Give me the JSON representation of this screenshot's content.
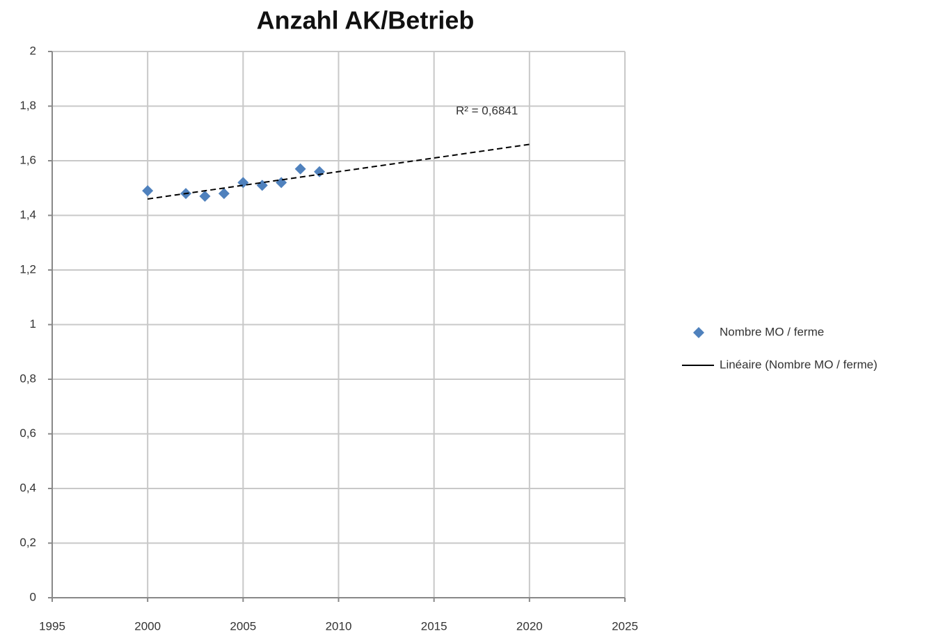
{
  "chart_data": {
    "type": "scatter",
    "title": "Anzahl AK/Betrieb",
    "annotation": "R² = 0,6841",
    "series": [
      {
        "name": "Nombre MO / ferme",
        "color": "#4f81bd",
        "mode": "markers",
        "x": [
          2000,
          2002,
          2003,
          2004,
          2005,
          2006,
          2007,
          2008,
          2009
        ],
        "values": [
          1.49,
          1.48,
          1.47,
          1.48,
          1.52,
          1.51,
          1.52,
          1.57,
          1.56
        ]
      },
      {
        "name": "Linéaire (Nombre MO / ferme)",
        "color": "#000000",
        "mode": "dashed-line",
        "x": [
          2000,
          2020
        ],
        "values": [
          1.46,
          1.66
        ]
      }
    ],
    "xlim": [
      1995,
      2025
    ],
    "xticks": [
      1995,
      2000,
      2005,
      2010,
      2015,
      2020,
      2025
    ],
    "ylim": [
      0,
      2
    ],
    "yticks": [
      0,
      {
        "value": 0.2,
        "label": "0,2"
      },
      {
        "value": 0.4,
        "label": "0,4"
      },
      {
        "value": 0.6,
        "label": "0,6"
      },
      {
        "value": 0.8,
        "label": "0,8"
      },
      1,
      {
        "value": 1.2,
        "label": "1,2"
      },
      {
        "value": 1.4,
        "label": "1,4"
      },
      {
        "value": 1.6,
        "label": "1,6"
      },
      {
        "value": 1.8,
        "label": "1,8"
      },
      2
    ],
    "grid": true,
    "legend": "right"
  }
}
